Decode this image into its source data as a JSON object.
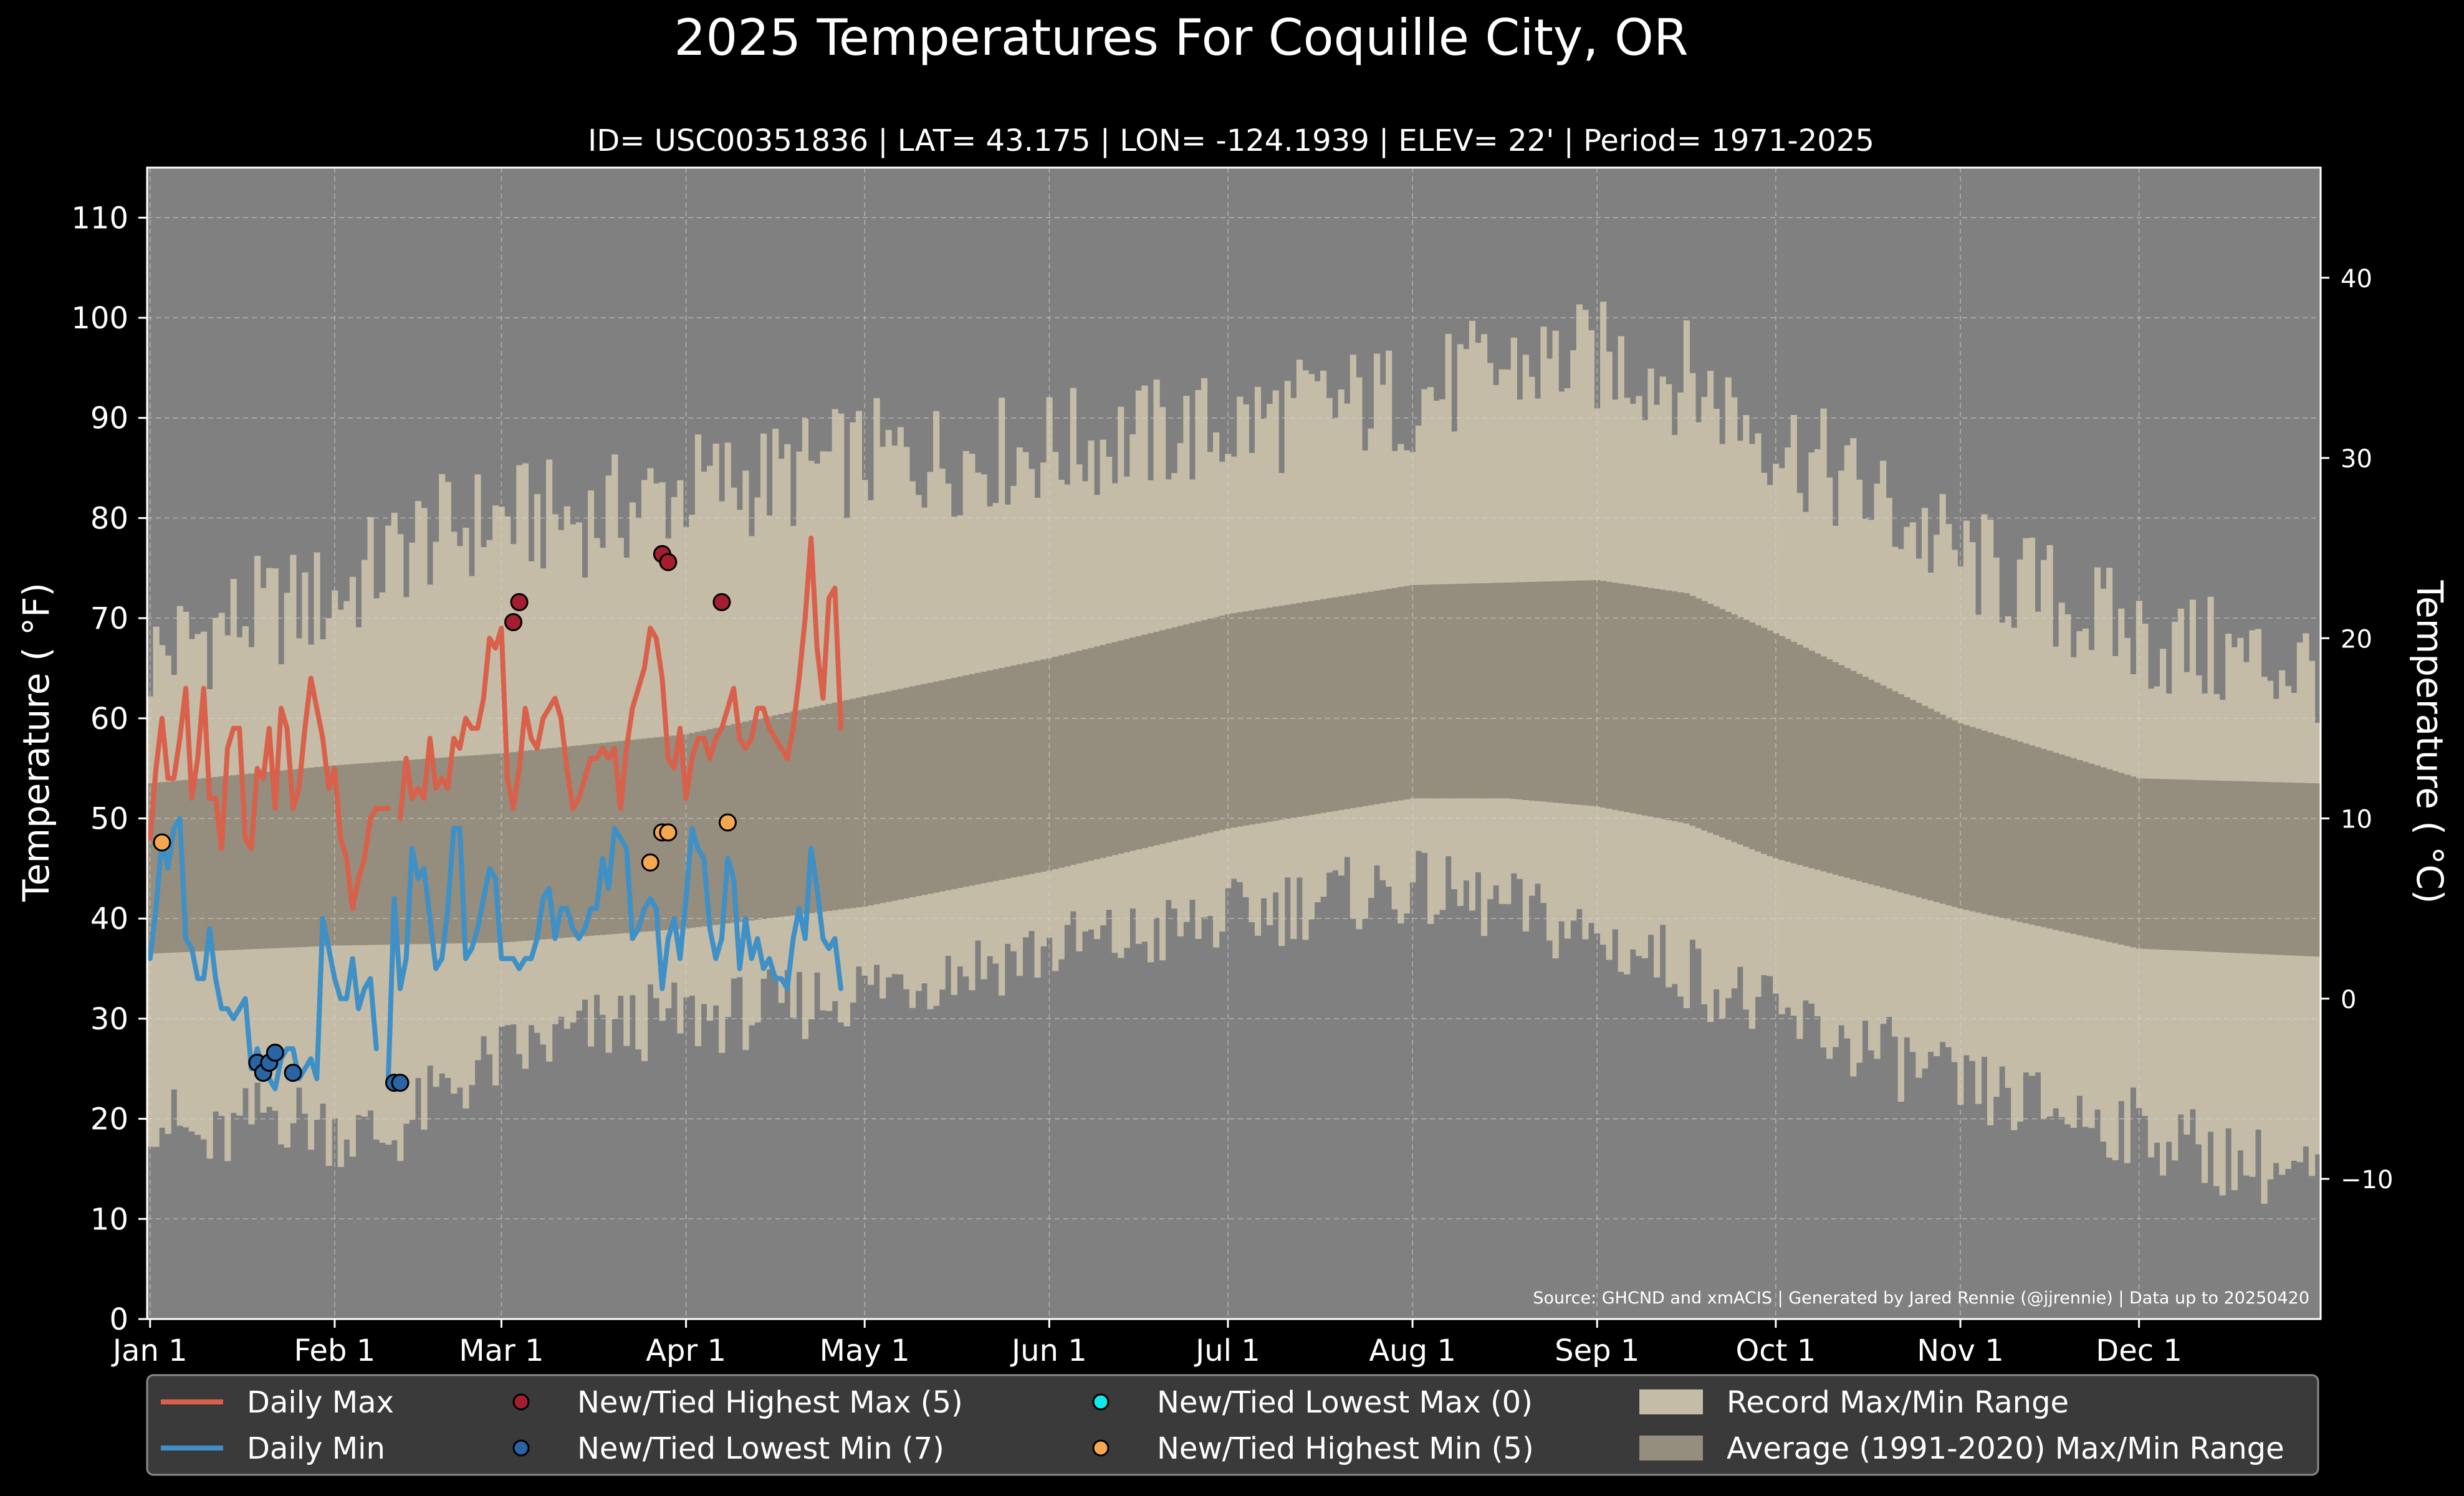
{
  "chart_data": {
    "type": "line",
    "title": "2025 Temperatures For Coquille City, OR",
    "subtitle": "ID= USC00351836 | LAT= 43.175 | LON= -124.1939 | ELEV= 22' | Period= 1971-2025",
    "ylabel": "Temperature ( °F)",
    "ylabel_right": "Temperature ( °C)",
    "source": "Source: GHCND and xmACIS | Generated by Jared Rennie (@jjrennie) | Data up to 20250420",
    "ylim": [
      0,
      115
    ],
    "yticks": [
      0,
      10,
      20,
      30,
      40,
      50,
      60,
      70,
      80,
      90,
      100,
      110
    ],
    "yticks_right": [
      {
        "value_c": -10,
        "label": "−10"
      },
      {
        "value_c": 0,
        "label": "0"
      },
      {
        "value_c": 10,
        "label": "10"
      },
      {
        "value_c": 20,
        "label": "20"
      },
      {
        "value_c": 30,
        "label": "30"
      },
      {
        "value_c": 40,
        "label": "40"
      }
    ],
    "xlim_days": [
      -0.5,
      364.5
    ],
    "xticks": [
      {
        "day": 0,
        "label": "Jan 1"
      },
      {
        "day": 31,
        "label": "Feb 1"
      },
      {
        "day": 59,
        "label": "Mar 1"
      },
      {
        "day": 90,
        "label": "Apr 1"
      },
      {
        "day": 120,
        "label": "May 1"
      },
      {
        "day": 151,
        "label": "Jun 1"
      },
      {
        "day": 181,
        "label": "Jul 1"
      },
      {
        "day": 212,
        "label": "Aug 1"
      },
      {
        "day": 243,
        "label": "Sep 1"
      },
      {
        "day": 273,
        "label": "Oct 1"
      },
      {
        "day": 304,
        "label": "Nov 1"
      },
      {
        "day": 334,
        "label": "Dec 1"
      }
    ],
    "grid": true,
    "legend_position": "bottom",
    "colors": {
      "figure_bg": "#000000",
      "plot_bg": "#808080",
      "record_range": "#c4bca6",
      "average_range": "#958d7d",
      "daily_max": "#d9604a",
      "daily_min": "#3e90c6",
      "highest_max": "#a31f30",
      "lowest_min": "#2a64a4",
      "lowest_max": "#12e8e8",
      "highest_min": "#f5a650",
      "legend_bg": "#3a3a3a"
    },
    "legend": [
      {
        "label": "Daily Max",
        "kind": "line",
        "color": "#d9604a"
      },
      {
        "label": "New/Tied Highest Max (5)",
        "kind": "dot",
        "color": "#a31f30"
      },
      {
        "label": "New/Tied Lowest Max (0)",
        "kind": "dot",
        "color": "#12e8e8"
      },
      {
        "label": "Record Max/Min Range",
        "kind": "patch",
        "color": "#c4bca6"
      },
      {
        "label": "Daily Min",
        "kind": "line",
        "color": "#3e90c6"
      },
      {
        "label": "New/Tied Lowest Min (7)",
        "kind": "dot",
        "color": "#2a64a4"
      },
      {
        "label": "New/Tied Highest Min (5)",
        "kind": "dot",
        "color": "#f5a650"
      },
      {
        "label": "Average (1991-2020) Max/Min Range",
        "kind": "patch",
        "color": "#958d7d"
      }
    ],
    "record_max_anchors": [
      [
        0,
        66
      ],
      [
        15,
        70
      ],
      [
        31,
        72
      ],
      [
        45,
        78
      ],
      [
        59,
        80
      ],
      [
        75,
        80
      ],
      [
        90,
        83
      ],
      [
        105,
        84
      ],
      [
        120,
        86
      ],
      [
        135,
        86
      ],
      [
        151,
        87
      ],
      [
        166,
        88
      ],
      [
        181,
        89
      ],
      [
        196,
        91
      ],
      [
        212,
        92
      ],
      [
        228,
        95
      ],
      [
        243,
        96
      ],
      [
        258,
        94
      ],
      [
        273,
        88
      ],
      [
        289,
        82
      ],
      [
        304,
        76
      ],
      [
        319,
        72
      ],
      [
        334,
        68
      ],
      [
        349,
        66
      ],
      [
        364,
        65
      ]
    ],
    "record_min_anchors": [
      [
        0,
        21
      ],
      [
        10,
        17
      ],
      [
        20,
        21
      ],
      [
        31,
        19
      ],
      [
        40,
        18
      ],
      [
        50,
        23
      ],
      [
        59,
        26
      ],
      [
        75,
        29
      ],
      [
        90,
        30
      ],
      [
        105,
        31
      ],
      [
        120,
        33
      ],
      [
        135,
        35
      ],
      [
        151,
        37
      ],
      [
        166,
        38
      ],
      [
        181,
        40
      ],
      [
        196,
        42
      ],
      [
        212,
        43
      ],
      [
        228,
        41
      ],
      [
        243,
        38
      ],
      [
        258,
        35
      ],
      [
        273,
        30
      ],
      [
        289,
        27
      ],
      [
        304,
        23
      ],
      [
        319,
        21
      ],
      [
        334,
        19
      ],
      [
        349,
        16
      ],
      [
        364,
        14
      ]
    ],
    "average_max_anchors": [
      [
        0,
        53.5
      ],
      [
        31,
        55.3
      ],
      [
        59,
        56.5
      ],
      [
        90,
        58.4
      ],
      [
        120,
        62.2
      ],
      [
        151,
        66
      ],
      [
        181,
        70.4
      ],
      [
        212,
        73.3
      ],
      [
        243,
        73.8
      ],
      [
        258,
        72.5
      ],
      [
        273,
        68.5
      ],
      [
        304,
        59.5
      ],
      [
        334,
        54
      ],
      [
        364,
        53.5
      ]
    ],
    "average_min_anchors": [
      [
        0,
        36.5
      ],
      [
        31,
        37.3
      ],
      [
        59,
        37.6
      ],
      [
        90,
        39
      ],
      [
        120,
        41.2
      ],
      [
        151,
        44.8
      ],
      [
        181,
        49
      ],
      [
        212,
        52
      ],
      [
        228,
        52
      ],
      [
        243,
        51.2
      ],
      [
        258,
        49.5
      ],
      [
        273,
        46
      ],
      [
        304,
        41
      ],
      [
        334,
        37
      ],
      [
        364,
        36.2
      ]
    ],
    "daily_max": [
      48,
      55,
      60,
      54,
      54,
      58,
      63,
      52,
      56,
      63,
      52,
      52,
      47,
      57,
      59,
      59,
      48,
      47,
      55,
      54,
      59,
      51,
      61,
      59,
      51,
      53,
      59,
      64,
      61,
      58,
      53,
      55,
      48,
      46,
      41,
      44,
      46,
      50,
      51,
      51,
      51,
      null,
      50,
      56,
      52,
      53,
      52,
      58,
      53,
      54,
      53,
      58,
      57,
      60,
      59,
      59,
      62,
      68,
      67,
      69,
      54,
      51,
      55,
      61,
      58,
      57,
      60,
      61,
      62,
      60,
      55,
      51,
      52,
      54,
      56,
      56,
      57,
      56,
      57,
      51,
      57,
      61,
      63,
      65,
      69,
      68,
      64,
      56,
      55,
      59,
      52,
      56,
      58,
      58,
      56,
      58,
      59,
      61,
      63,
      58,
      57,
      58,
      61,
      61,
      59,
      58,
      57,
      56,
      59,
      64,
      70,
      78,
      67,
      62,
      72,
      73,
      59
    ],
    "daily_min": [
      36,
      41,
      48,
      45,
      49,
      50,
      38,
      37,
      34,
      34,
      39,
      34,
      31,
      31,
      30,
      31,
      32,
      25,
      27,
      25,
      24,
      23,
      26,
      27,
      27,
      24,
      25,
      26,
      24,
      40,
      37,
      34,
      32,
      32,
      36,
      31,
      33,
      34,
      27,
      null,
      24,
      42,
      33,
      36,
      47,
      44,
      45,
      40,
      35,
      36,
      41,
      49,
      49,
      36,
      37,
      39,
      42,
      45,
      44,
      36,
      36,
      36,
      35,
      36,
      36,
      38,
      42,
      43,
      38,
      41,
      41,
      39,
      38,
      39,
      41,
      41,
      46,
      43,
      49,
      48,
      47,
      38,
      39,
      41,
      42,
      41,
      33,
      38,
      40,
      36,
      42,
      49,
      47,
      46,
      39,
      36,
      38,
      46,
      44,
      35,
      40,
      36,
      38,
      35,
      36,
      34,
      34,
      33,
      38,
      41,
      38,
      47,
      43,
      38,
      37,
      38,
      33
    ],
    "new_tied_highest_max": [
      {
        "day": 61,
        "value": 69.6
      },
      {
        "day": 62,
        "value": 71.6
      },
      {
        "day": 86,
        "value": 76.4
      },
      {
        "day": 87,
        "value": 75.6
      },
      {
        "day": 96,
        "value": 71.6
      }
    ],
    "new_tied_lowest_min": [
      {
        "day": 18,
        "value": 25.6
      },
      {
        "day": 19,
        "value": 24.6
      },
      {
        "day": 20,
        "value": 25.6
      },
      {
        "day": 21,
        "value": 26.6
      },
      {
        "day": 24,
        "value": 24.6
      },
      {
        "day": 41,
        "value": 23.6
      },
      {
        "day": 42,
        "value": 23.6
      }
    ],
    "new_tied_lowest_max": [],
    "new_tied_highest_min": [
      {
        "day": 2,
        "value": 47.6
      },
      {
        "day": 84,
        "value": 45.6
      },
      {
        "day": 86,
        "value": 48.6
      },
      {
        "day": 87,
        "value": 48.6
      },
      {
        "day": 97,
        "value": 49.6
      }
    ]
  }
}
